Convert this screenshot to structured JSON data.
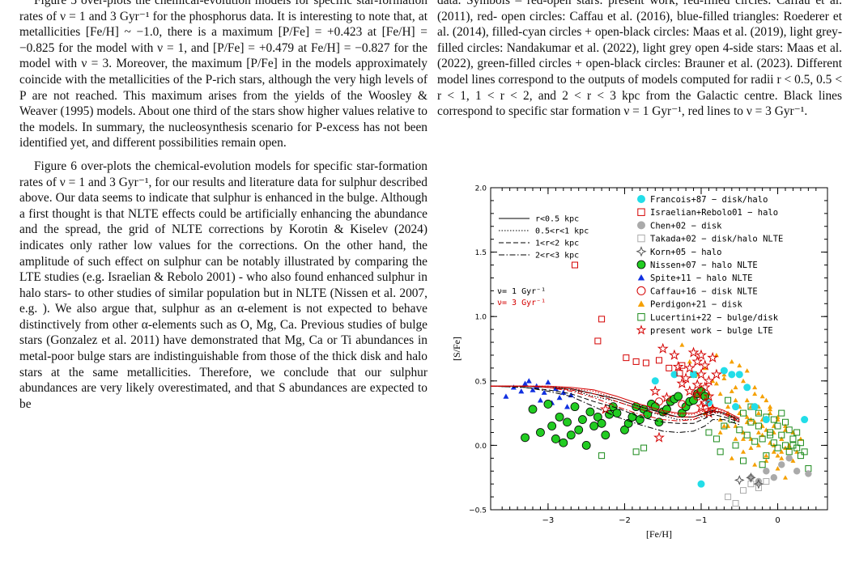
{
  "left_column": {
    "paragraph_1": "Figure 5 over-plots the chemical-evolution models for specific star-formation rates of ν = 1 and 3 Gyr⁻¹ for the phosphorus data. It is interesting to note that, at metallicities [Fe/H] ~ −1.0, there is a maximum [P/Fe] = +0.423 at [Fe/H] = −0.825 for the model with ν = 1, and [P/Fe] = +0.479 at Fe/H] = −0.827 for the model with ν = 3. Moreover, the maximum [P/Fe] in the models approximately coincide with the metallicities of the P-rich stars, although the very high levels of P are not reached. This maximum arises from the yields of the Woosley & Weaver (1995) models. About one third of the stars show higher values relative to the models. In summary, the nucleosynthesis scenario for P-excess has not been identified yet, and different possibilities remain open.",
    "paragraph_2": "Figure 6 over-plots the chemical-evolution models for specific star-formation rates of ν = 1 and 3 Gyr⁻¹, for our results and literature data for sulphur described above. Our data seems to indicate that sulphur is enhanced in the bulge. Although a first thought is that NLTE effects could be artificially enhancing the abundance and the spread, the grid of NLTE corrections by Korotin & Kiselev (2024) indicates only rather low values for the corrections. On the other hand, the amplitude of such effect on sulphur can be notably illustrated by comparing the LTE studies (e.g. Israelian & Rebolo 2001) - who also found enhanced sulphur in halo stars- to other studies of similar population but in NLTE (Nissen et al. 2007, e.g. ). We also argue that, sulphur as an α-element is not expected to behave distinctively from other α-elements such as O, Mg, Ca. Previous studies of bulge stars (Gonzalez et al. 2011) have demonstrated that Mg, Ca or Ti abundances in metal-poor bulge stars are indistinguishable from those of the thick disk and halo stars at the same metallicities. Therefore, we conclude that our sulphur abundances are very likely overestimated, and that S abundances are expected to be"
  },
  "right_column": {
    "caption": "data. Symbols – red-open stars: present work, red-filled circles: Caffau et al. (2011), red- open circles: Caffau et al. (2016), blue-filled triangles: Roederer et al. (2014), filled-cyan circles + open-black circles: Maas et al. (2019), light grey-filled circles: Nandakumar et al. (2022), light grey open 4-side stars: Maas et al. (2022), green-filled circles + open-black circles: Brauner et al. (2023). Different model lines correspond to the outputs of models computed for radii r < 0.5, 0.5 < r < 1, 1 < r < 2, and 2 < r < 3 kpc from the Galactic centre. Black lines correspond to specific star formation ν = 1 Gyr⁻¹, red lines to ν = 3 Gyr⁻¹."
  },
  "chart_data": {
    "type": "scatter",
    "xlabel": "[Fe/H]",
    "ylabel": "[S/Fe]",
    "xlim": [
      -3.75,
      0.65
    ],
    "ylim": [
      -0.5,
      2.0
    ],
    "x_ticks": [
      -3,
      -2,
      -1,
      0
    ],
    "x_tick_labels": [
      "−3",
      "−2",
      "−1",
      "0"
    ],
    "y_ticks": [
      -0.5,
      0.0,
      0.5,
      1.0,
      1.5,
      2.0
    ],
    "y_tick_labels": [
      "−0.5",
      "0.0",
      "0.5",
      "1.0",
      "1.5",
      "2.0"
    ],
    "model_legend": {
      "lines": [
        "r<0.5 kpc",
        "0.5<r<1 kpc",
        "1<r<2 kpc",
        "2<r<3 kpc"
      ],
      "nu1": "ν= 1 Gyr⁻¹",
      "nu3": "ν= 3 Gyr⁻¹",
      "nu1_color": "#000000",
      "nu3_color": "#d40000"
    },
    "legend": [
      {
        "label": "Francois+87 − disk/halo",
        "marker": "filled-circle",
        "color": "#22dde8"
      },
      {
        "label": "Israelian+Rebolo01 − halo",
        "marker": "open-square",
        "color": "#d40000"
      },
      {
        "label": "Chen+02 − disk",
        "marker": "filled-circle",
        "color": "#aaaaaa"
      },
      {
        "label": "Takada+02 − disk/halo NLTE",
        "marker": "open-square",
        "color": "#aaaaaa"
      },
      {
        "label": "Korn+05 − halo",
        "marker": "open-4star",
        "color": "#555555"
      },
      {
        "label": "Nissen+07 − halo NLTE",
        "marker": "filled-circle-black-edge",
        "color": "#22cc22"
      },
      {
        "label": "Spite+11 − halo NLTE",
        "marker": "filled-triangle",
        "color": "#1030e0"
      },
      {
        "label": "Caffau+16 − disk NLTE",
        "marker": "open-circle",
        "color": "#d40000"
      },
      {
        "label": "Perdigon+21 − disk",
        "marker": "filled-triangle",
        "color": "#f5a000"
      },
      {
        "label": "Lucertini+22 − bulge/disk",
        "marker": "open-square",
        "color": "#1a8a1a"
      },
      {
        "label": "present work − bulge LTE",
        "marker": "open-star",
        "color": "#d40000"
      }
    ],
    "models": {
      "nu1": [
        {
          "radius": "r<0.5 kpc",
          "style": "solid",
          "x": [
            -3.75,
            -3.3,
            -3.0,
            -2.7,
            -2.4,
            -2.1,
            -1.8,
            -1.5,
            -1.3,
            -1.1,
            -0.95,
            -0.85,
            -0.7,
            -0.5
          ],
          "y": [
            0.46,
            0.46,
            0.45,
            0.44,
            0.4,
            0.36,
            0.3,
            0.25,
            0.22,
            0.22,
            0.25,
            0.27,
            0.25,
            0.2
          ]
        },
        {
          "radius": "0.5<r<1 kpc",
          "style": "dotted",
          "x": [
            -3.75,
            -3.3,
            -3.0,
            -2.7,
            -2.4,
            -2.1,
            -1.8,
            -1.5,
            -1.3,
            -1.1,
            -0.95,
            -0.85,
            -0.7,
            -0.5
          ],
          "y": [
            0.46,
            0.46,
            0.45,
            0.43,
            0.38,
            0.34,
            0.28,
            0.23,
            0.2,
            0.2,
            0.23,
            0.26,
            0.24,
            0.19
          ]
        },
        {
          "radius": "1<r<2 kpc",
          "style": "dashed",
          "x": [
            -3.75,
            -3.3,
            -3.0,
            -2.7,
            -2.4,
            -2.1,
            -1.8,
            -1.5,
            -1.3,
            -1.1,
            -0.95,
            -0.85,
            -0.7,
            -0.5
          ],
          "y": [
            0.46,
            0.45,
            0.43,
            0.4,
            0.34,
            0.29,
            0.22,
            0.18,
            0.17,
            0.17,
            0.21,
            0.24,
            0.22,
            0.18
          ]
        },
        {
          "radius": "2<r<3 kpc",
          "style": "dashdot",
          "x": [
            -3.75,
            -3.3,
            -3.0,
            -2.7,
            -2.4,
            -2.1,
            -1.8,
            -1.5,
            -1.3,
            -1.1,
            -0.95,
            -0.85,
            -0.7,
            -0.5
          ],
          "y": [
            0.46,
            0.45,
            0.42,
            0.38,
            0.3,
            0.22,
            0.16,
            0.11,
            0.1,
            0.11,
            0.15,
            0.2,
            0.2,
            0.16
          ]
        }
      ],
      "nu3": [
        {
          "radius": "r<0.5 kpc",
          "style": "solid",
          "x": [
            -3.75,
            -3.3,
            -3.0,
            -2.7,
            -2.4,
            -2.1,
            -1.8,
            -1.5,
            -1.3,
            -1.1,
            -0.95,
            -0.85,
            -0.7,
            -0.5
          ],
          "y": [
            0.46,
            0.46,
            0.46,
            0.45,
            0.43,
            0.38,
            0.32,
            0.27,
            0.25,
            0.25,
            0.28,
            0.3,
            0.27,
            0.21
          ]
        },
        {
          "radius": "0.5<r<1 kpc",
          "style": "dotted",
          "x": [
            -3.75,
            -3.3,
            -3.0,
            -2.7,
            -2.4,
            -2.1,
            -1.8,
            -1.5,
            -1.3,
            -1.1,
            -0.95,
            -0.85,
            -0.7,
            -0.5
          ],
          "y": [
            0.46,
            0.46,
            0.46,
            0.44,
            0.42,
            0.36,
            0.3,
            0.26,
            0.24,
            0.24,
            0.27,
            0.29,
            0.26,
            0.2
          ]
        },
        {
          "radius": "1<r<2 kpc",
          "style": "dashed",
          "x": [
            -3.75,
            -3.3,
            -3.0,
            -2.7,
            -2.4,
            -2.1,
            -1.8,
            -1.5,
            -1.3,
            -1.1,
            -0.95,
            -0.85,
            -0.7,
            -0.5
          ],
          "y": [
            0.46,
            0.46,
            0.45,
            0.43,
            0.4,
            0.34,
            0.28,
            0.24,
            0.22,
            0.22,
            0.26,
            0.28,
            0.25,
            0.19
          ]
        },
        {
          "radius": "2<r<3 kpc",
          "style": "dashdot",
          "x": [
            -3.75,
            -3.3,
            -3.0,
            -2.7,
            -2.4,
            -2.1,
            -1.8,
            -1.5,
            -1.3,
            -1.1,
            -0.95,
            -0.85,
            -0.7,
            -0.5
          ],
          "y": [
            0.46,
            0.46,
            0.45,
            0.42,
            0.37,
            0.3,
            0.24,
            0.2,
            0.19,
            0.2,
            0.24,
            0.27,
            0.24,
            0.18
          ]
        }
      ]
    },
    "series": [
      {
        "name": "Francois+87 − disk/halo",
        "x": [
          -1.6,
          -1.35,
          -1.1,
          -0.9,
          -0.7,
          -0.6,
          -0.5,
          -0.4,
          -0.3,
          -0.15,
          0.35,
          -1.0,
          -0.55
        ],
        "y": [
          0.5,
          0.55,
          0.55,
          0.33,
          0.58,
          0.55,
          0.55,
          0.45,
          0.3,
          0.2,
          0.2,
          -0.3,
          0.3
        ]
      },
      {
        "name": "Israelian+Rebolo01 − halo",
        "x": [
          -2.65,
          -2.3,
          -2.35,
          -1.98,
          -1.85,
          -1.72,
          -1.55,
          -1.42,
          -1.28,
          -1.25
        ],
        "y": [
          1.4,
          0.98,
          0.81,
          0.68,
          0.65,
          0.64,
          0.66,
          0.6,
          0.56,
          0.62
        ]
      },
      {
        "name": "Chen+02 − disk",
        "x": [
          -0.35,
          -0.25,
          -0.15,
          -0.05,
          0.05,
          0.15,
          0.25,
          0.4
        ],
        "y": [
          -0.25,
          -0.28,
          -0.2,
          -0.25,
          -0.15,
          -0.1,
          -0.2,
          -0.22
        ]
      },
      {
        "name": "Takada+02 − disk/halo NLTE",
        "x": [
          -0.65,
          -0.55,
          -0.45,
          -0.35,
          -0.25,
          -0.15
        ],
        "y": [
          -0.4,
          -0.45,
          -0.35,
          -0.3,
          -0.33,
          -0.28
        ]
      },
      {
        "name": "Korn+05 − halo",
        "x": [
          -0.5,
          -0.35,
          -0.25
        ],
        "y": [
          -0.27,
          -0.25,
          -0.3
        ]
      },
      {
        "name": "Nissen+07 − halo NLTE",
        "x": [
          -3.3,
          -3.2,
          -3.1,
          -3.0,
          -2.95,
          -2.9,
          -2.85,
          -2.8,
          -2.75,
          -2.7,
          -2.65,
          -2.6,
          -2.55,
          -2.5,
          -2.45,
          -2.4,
          -2.35,
          -2.3,
          -2.25,
          -2.2,
          -2.15,
          -2.1,
          -2.0,
          -1.95,
          -1.9,
          -1.85,
          -1.8,
          -1.75,
          -1.7,
          -1.65,
          -1.6,
          -1.55,
          -1.5,
          -1.45,
          -1.4,
          -1.35,
          -1.3,
          -1.25,
          -1.2,
          -1.15,
          -1.1,
          -1.05,
          -1.0,
          -0.95
        ],
        "y": [
          0.06,
          0.28,
          0.1,
          0.32,
          0.15,
          0.05,
          0.22,
          0.02,
          0.18,
          0.08,
          0.3,
          0.12,
          0.2,
          0.0,
          0.26,
          0.15,
          0.22,
          0.17,
          0.08,
          0.24,
          0.3,
          0.25,
          0.12,
          0.17,
          0.22,
          0.3,
          0.2,
          0.28,
          0.24,
          0.32,
          0.3,
          0.18,
          0.26,
          0.28,
          0.34,
          0.36,
          0.38,
          0.25,
          0.3,
          0.34,
          0.35,
          0.4,
          0.42,
          0.38
        ]
      },
      {
        "name": "Spite+11 − halo NLTE",
        "x": [
          -3.55,
          -3.45,
          -3.35,
          -3.3,
          -3.25,
          -3.2,
          -3.15,
          -3.1,
          -3.05,
          -3.0,
          -2.95,
          -2.9,
          -2.85,
          -2.8,
          -2.75,
          -2.7
        ],
        "y": [
          0.38,
          0.45,
          0.42,
          0.48,
          0.5,
          0.43,
          0.46,
          0.35,
          0.41,
          0.49,
          0.33,
          0.44,
          0.37,
          0.41,
          0.3,
          0.39
        ]
      },
      {
        "name": "Caffau+16 − disk NLTE",
        "x": [
          -1.55,
          -1.25,
          -1.05
        ],
        "y": [
          0.34,
          0.32,
          0.38
        ]
      },
      {
        "name": "Perdigon+21 − disk",
        "x": [
          -1.25,
          -1.15,
          -1.05,
          -1.0,
          -0.95,
          -0.9,
          -0.85,
          -0.8,
          -0.75,
          -0.7,
          -0.65,
          -0.6,
          -0.55,
          -0.5,
          -0.45,
          -0.4,
          -0.35,
          -0.3,
          -0.25,
          -0.2,
          -0.15,
          -0.1,
          -0.05,
          0.0,
          0.05,
          0.1,
          0.15,
          0.2,
          0.25,
          0.3,
          -0.95,
          -0.85,
          -0.75,
          -0.65,
          -0.55,
          -0.45,
          -0.35,
          -0.25,
          -0.15,
          -0.05,
          0.05,
          0.15,
          -0.9,
          -0.8,
          -0.7,
          -0.6,
          -0.5,
          -0.4,
          -0.3,
          -0.2,
          -0.1,
          0.0,
          0.1,
          0.2,
          -0.75,
          -0.65,
          -0.55,
          -0.45,
          -0.35,
          -0.25,
          -0.15,
          -0.05,
          0.05,
          -0.5,
          -0.4,
          -0.3,
          -0.2,
          -0.1,
          0.0,
          0.1,
          -0.6,
          -0.45,
          -0.3,
          -0.15,
          0.0,
          -0.7,
          -0.55,
          -0.4,
          -0.25,
          -0.1,
          0.05,
          -0.35,
          -0.2,
          -0.05,
          0.1
        ],
        "y": [
          0.78,
          0.65,
          0.55,
          0.45,
          0.6,
          0.35,
          0.5,
          0.7,
          0.4,
          0.55,
          0.3,
          0.65,
          0.45,
          0.25,
          0.5,
          0.35,
          0.2,
          0.4,
          0.3,
          0.15,
          0.35,
          0.25,
          0.1,
          0.2,
          0.05,
          0.15,
          0.0,
          0.1,
          -0.05,
          0.05,
          0.25,
          0.3,
          0.2,
          0.15,
          0.35,
          0.1,
          0.05,
          0.0,
          0.12,
          -0.05,
          -0.1,
          -0.02,
          0.4,
          0.48,
          0.52,
          0.42,
          0.3,
          0.22,
          0.18,
          0.08,
          0.02,
          -0.08,
          -0.02,
          -0.12,
          0.1,
          0.25,
          0.15,
          0.05,
          -0.02,
          0.1,
          -0.08,
          0.0,
          0.05,
          0.62,
          0.58,
          0.45,
          0.38,
          0.28,
          0.22,
          0.12,
          -0.1,
          -0.05,
          -0.15,
          -0.12,
          -0.18,
          0.15,
          0.05,
          0.18,
          0.25,
          0.3,
          -0.05,
          0.3,
          0.2,
          0.15,
          -0.25
        ]
      },
      {
        "name": "Lucertini+22 − bulge/disk",
        "x": [
          -2.3,
          -1.85,
          -1.75,
          -1.1,
          -0.9,
          -0.8,
          -0.7,
          -0.6,
          -0.55,
          -0.5,
          -0.45,
          -0.4,
          -0.35,
          -0.3,
          -0.25,
          -0.2,
          -0.15,
          -0.1,
          -0.05,
          0.0,
          0.05,
          0.1,
          0.15,
          0.2,
          0.25,
          0.3,
          0.35,
          0.4,
          -0.75,
          -0.65,
          -0.45,
          -0.35,
          -0.25,
          -0.15,
          -0.05,
          0.05,
          0.15,
          0.25,
          -0.2,
          -0.1,
          0.0,
          0.1,
          0.2,
          0.3
        ],
        "y": [
          -0.08,
          -0.05,
          -0.02,
          0.55,
          0.1,
          0.05,
          0.15,
          0.2,
          0.0,
          0.12,
          0.25,
          0.08,
          0.18,
          0.03,
          0.15,
          0.05,
          0.22,
          0.1,
          0.02,
          0.15,
          0.08,
          0.0,
          -0.05,
          0.05,
          -0.02,
          0.02,
          -0.05,
          -0.18,
          -0.05,
          0.35,
          -0.12,
          0.3,
          0.25,
          -0.08,
          0.2,
          0.25,
          0.12,
          0.1,
          -0.15,
          0.08,
          -0.02,
          0.18,
          0.0,
          -0.08
        ]
      },
      {
        "name": "present work − bulge LTE",
        "x": [
          -2.25,
          -1.55,
          -1.5,
          -1.3,
          -1.2,
          -1.15,
          -1.1,
          -1.05,
          -1.05,
          -1.0,
          -1.0,
          -0.95,
          -0.95,
          -0.9,
          -0.9,
          -0.85,
          -0.8,
          -1.15,
          -1.0,
          -0.9,
          -1.05,
          -0.95,
          -1.25,
          -1.6,
          -1.45,
          -0.85,
          -1.35
        ],
        "y": [
          0.28,
          0.06,
          0.75,
          0.61,
          0.52,
          0.6,
          0.72,
          0.47,
          0.65,
          0.55,
          0.7,
          0.45,
          0.62,
          0.5,
          0.38,
          0.68,
          0.55,
          0.42,
          0.3,
          0.25,
          0.4,
          0.33,
          0.48,
          0.42,
          0.37,
          0.28,
          0.7
        ]
      }
    ]
  }
}
